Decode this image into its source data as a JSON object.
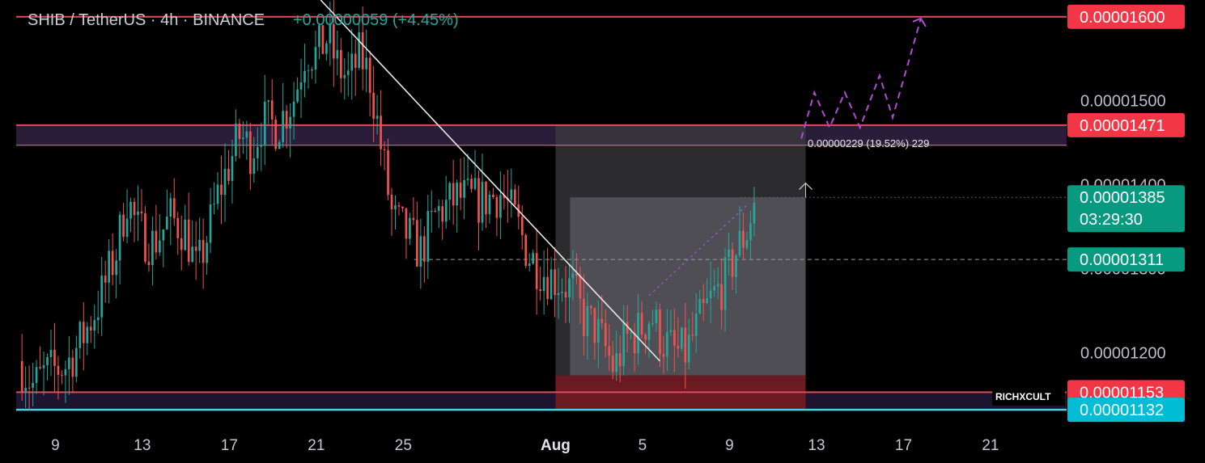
{
  "header": {
    "symbol": "SHIB / TetherUS · 4h · BINANCE",
    "change": "+0.00000059 (+4.45%)"
  },
  "watermark": "RICHXCULT",
  "measure_label": "0.00000229 (19.52%) 229",
  "price_labels": [
    {
      "id": "top",
      "text": "0.00001600",
      "value": 1.6e-05,
      "color": "#f23645"
    },
    {
      "id": "resistance",
      "text": "0.00001471",
      "value": 1.471e-05,
      "color": "#f23645"
    },
    {
      "id": "current",
      "text": "0.00001385",
      "value": 1.385e-05,
      "color": "#089981",
      "sub": "03:29:30"
    },
    {
      "id": "entry",
      "text": "0.00001311",
      "value": 1.311e-05,
      "color": "#089981"
    },
    {
      "id": "support",
      "text": "0.00001153",
      "value": 1.153e-05,
      "color": "#f23645"
    },
    {
      "id": "bottom",
      "text": "0.00001132",
      "value": 1.132e-05,
      "color": "#00bcd4"
    }
  ],
  "chart_data": {
    "type": "candlestick",
    "title": "SHIB / TetherUS · 4h · BINANCE",
    "x_unit": "day offset from Jul 9 (each candle = 4h)",
    "y_ticks": [
      {
        "label": "0.00001500",
        "value": 1.5e-05
      },
      {
        "label": "0.00001400",
        "value": 1.4e-05
      },
      {
        "label": "0.00001300",
        "value": 1.3e-05
      },
      {
        "label": "0.00001200",
        "value": 1.2e-05
      }
    ],
    "x_ticks": [
      {
        "label": "9",
        "day": 0
      },
      {
        "label": "13",
        "day": 4
      },
      {
        "label": "17",
        "day": 8
      },
      {
        "label": "21",
        "day": 12
      },
      {
        "label": "25",
        "day": 16
      },
      {
        "label": "Aug",
        "day": 23,
        "bold": true
      },
      {
        "label": "5",
        "day": 27
      },
      {
        "label": "9",
        "day": 31
      },
      {
        "label": "13",
        "day": 35
      },
      {
        "label": "17",
        "day": 39
      },
      {
        "label": "21",
        "day": 43
      }
    ],
    "ylim": [
      1.11e-05,
      1.62e-05
    ],
    "xlim": [
      -1.8,
      46.5
    ],
    "colors": {
      "up": "#26a69a",
      "down": "#ef5350"
    },
    "path_points": [
      [
        -1.7,
        1.19e-05
      ],
      [
        -1.0,
        1.16e-05
      ],
      [
        -0.5,
        1.175e-05
      ],
      [
        0.5,
        1.185e-05
      ],
      [
        1.2,
        1.215e-05
      ],
      [
        2.0,
        1.26e-05
      ],
      [
        2.8,
        1.32e-05
      ],
      [
        3.3,
        1.385e-05
      ],
      [
        3.8,
        1.345e-05
      ],
      [
        4.5,
        1.33e-05
      ],
      [
        5.3,
        1.36e-05
      ],
      [
        6.0,
        1.345e-05
      ],
      [
        6.5,
        1.295e-05
      ],
      [
        7.0,
        1.34e-05
      ],
      [
        7.5,
        1.39e-05
      ],
      [
        8.0,
        1.425e-05
      ],
      [
        8.5,
        1.46e-05
      ],
      [
        9.0,
        1.44e-05
      ],
      [
        9.5,
        1.475e-05
      ],
      [
        10.2,
        1.47e-05
      ],
      [
        11.0,
        1.505e-05
      ],
      [
        11.5,
        1.56e-05
      ],
      [
        12.0,
        1.555e-05
      ],
      [
        12.5,
        1.575e-05
      ],
      [
        13.0,
        1.54e-05
      ],
      [
        13.5,
        1.525e-05
      ],
      [
        14.0,
        1.555e-05
      ],
      [
        14.5,
        1.525e-05
      ],
      [
        15.0,
        1.44e-05
      ],
      [
        15.5,
        1.36e-05
      ],
      [
        16.2,
        1.34e-05
      ],
      [
        16.8,
        1.32e-05
      ],
      [
        17.5,
        1.365e-05
      ],
      [
        18.5,
        1.385e-05
      ],
      [
        19.5,
        1.38e-05
      ],
      [
        20.5,
        1.39e-05
      ],
      [
        21.2,
        1.355e-05
      ],
      [
        21.8,
        1.315e-05
      ],
      [
        22.5,
        1.295e-05
      ],
      [
        23.2,
        1.285e-05
      ],
      [
        23.8,
        1.275e-05
      ],
      [
        24.3,
        1.24e-05
      ],
      [
        24.8,
        1.23e-05
      ],
      [
        25.2,
        1.21e-05
      ],
      [
        25.7,
        1.18e-05
      ],
      [
        26.2,
        1.215e-05
      ],
      [
        26.8,
        1.225e-05
      ],
      [
        27.4,
        1.245e-05
      ],
      [
        27.9,
        1.215e-05
      ],
      [
        28.5,
        1.2e-05
      ],
      [
        29.0,
        1.2e-05
      ],
      [
        29.5,
        1.23e-05
      ],
      [
        30.2,
        1.265e-05
      ],
      [
        30.8,
        1.285e-05
      ],
      [
        31.3,
        1.32e-05
      ],
      [
        31.8,
        1.345e-05
      ],
      [
        32.2,
        1.385e-05
      ]
    ],
    "resistance_zone": [
      1.447e-05,
      1.471e-05
    ],
    "support_zone": [
      1.132e-05,
      1.153e-05
    ],
    "entry_level": 1.311e-05,
    "long_position": {
      "start_day": 23.0,
      "end_day": 34.5,
      "entry": 1.385e-05,
      "target": 1.471e-05,
      "stop": 1.132e-05,
      "stop_top": 1.173e-05
    },
    "trendline": [
      [
        12.2,
        1.62e-05
      ],
      [
        27.8,
        1.19e-05
      ]
    ],
    "projection": [
      [
        34.3,
        1.455e-05
      ],
      [
        34.9,
        1.51e-05
      ],
      [
        35.6,
        1.468e-05
      ],
      [
        36.3,
        1.51e-05
      ],
      [
        37.0,
        1.468e-05
      ],
      [
        37.9,
        1.53e-05
      ],
      [
        38.5,
        1.48e-05
      ],
      [
        39.8,
        1.598e-05
      ]
    ]
  }
}
